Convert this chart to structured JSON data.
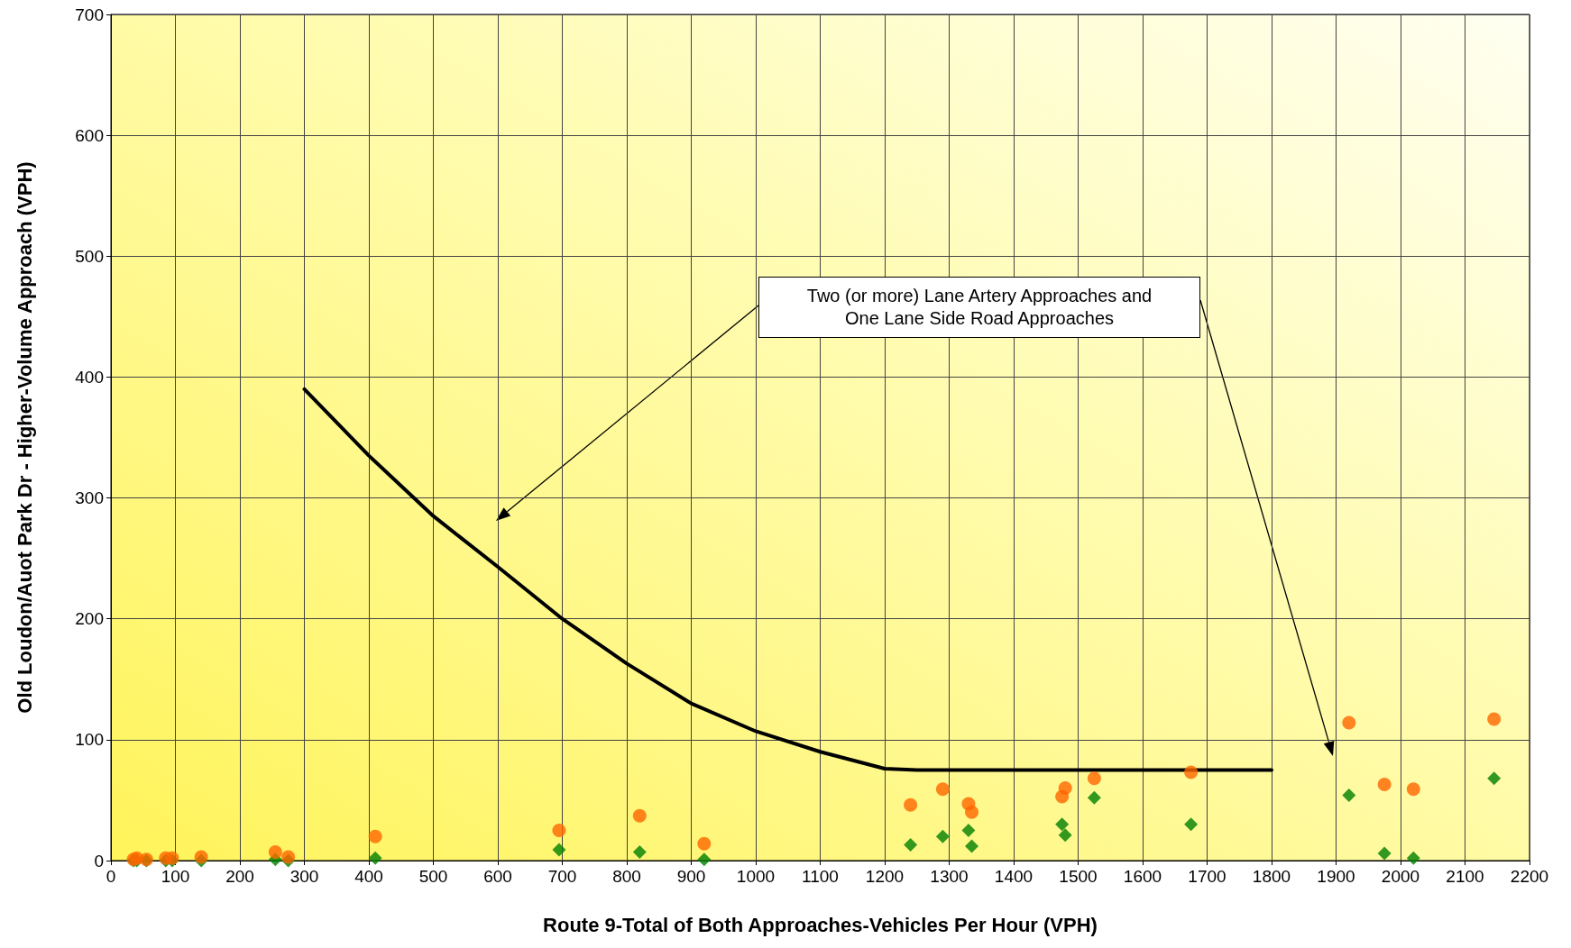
{
  "chart_data": {
    "type": "scatter",
    "xlabel": "Route 9-Total of Both Approaches-Vehicles Per Hour (VPH)",
    "ylabel": "Old Loudon/Auot Park Dr - Higher-Volume Approach (VPH)",
    "annotations": [
      "Two (or more) Lane Artery Approaches and\nOne Lane Side Road Approaches"
    ],
    "x": [
      35,
      40,
      55,
      85,
      95,
      140,
      255,
      275,
      410,
      695,
      820,
      920,
      1240,
      1290,
      1330,
      1335,
      1475,
      1480,
      1525,
      1675,
      1920,
      1975,
      2020,
      2145
    ],
    "series": [
      {
        "color": "#ff6600",
        "marker": "circle",
        "values": [
          1,
          2,
          1,
          2,
          2,
          3,
          7,
          3,
          20,
          25,
          37,
          14,
          46,
          59,
          47,
          40,
          53,
          60,
          68,
          73,
          114,
          63,
          59,
          117
        ]
      },
      {
        "color": "#008000",
        "marker": "diamond",
        "values": [
          0,
          0,
          0,
          0,
          0,
          0,
          1,
          0,
          2,
          9,
          7,
          1,
          13,
          20,
          25,
          12,
          30,
          21,
          52,
          30,
          54,
          6,
          2,
          68
        ]
      },
      {
        "type": "line",
        "color": "#000000",
        "marker": "none",
        "line_style": "solid",
        "x": [
          300,
          400,
          500,
          600,
          700,
          800,
          900,
          1000,
          1100,
          1200,
          1250,
          1800
        ],
        "values": [
          390,
          335,
          285,
          243,
          200,
          163,
          130,
          107,
          90,
          76,
          75,
          75
        ]
      }
    ],
    "xlim": [
      0,
      2200
    ],
    "xticks": [
      0,
      100,
      200,
      300,
      400,
      500,
      600,
      700,
      800,
      900,
      1000,
      1100,
      1200,
      1300,
      1400,
      1500,
      1600,
      1700,
      1800,
      1900,
      2000,
      2100,
      2200
    ],
    "ylim": [
      0,
      700
    ],
    "yticks": [
      0,
      100,
      200,
      300,
      400,
      500,
      600,
      700
    ],
    "grid": true
  }
}
